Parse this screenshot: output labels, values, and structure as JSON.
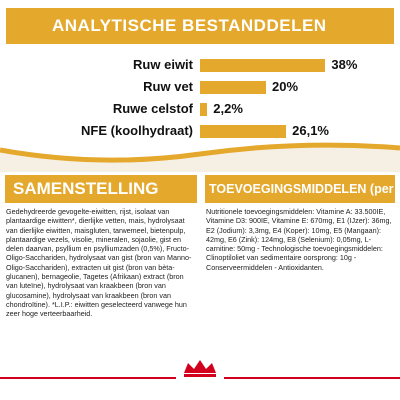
{
  "header": {
    "title": "ANALYTISCHE BESTANDDELEN"
  },
  "analysis": {
    "rows": [
      {
        "label": "Ruw eiwit",
        "value": 38,
        "value_label": "38%"
      },
      {
        "label": "Ruw vet",
        "value": 20,
        "value_label": "20%"
      },
      {
        "label": "Ruwe celstof",
        "value": 2.2,
        "value_label": "2,2%"
      },
      {
        "label": "NFE (koolhydraat)",
        "value": 26.1,
        "value_label": "26,1%"
      }
    ]
  },
  "composition": {
    "title": "SAMENSTELLING",
    "text": "Gedehydreerde gevogelte-eiwitten, rijst, isolaat van plantaardige eiwitten*, dierlijke vetten, mais, hydrolysaat van dierlijke eiwitten, maisgluten, tarwemeel, bietenpulp, plantaardige vezels, visolie, mineralen, sojaolie, gist en delen daarvan, psyllium en psylliumzaden (0,5%), Fructo-Oligo-Sacchariden, hydrolysaat van gist (bron van Manno-Oligo-Sacchariden), extracten uit gist (bron van bèta-glucanen), bernageolie, Tagetes (Afrikaan) extract (bron van luteïne), hydrolysaat van kraakbeen (bron van glucosamine), hydrolysaat van kraakbeen (bron van chondroïtine). *L.I.P.: eiwitten geselecteerd vanwege hun zeer hoge verteerbaarheid."
  },
  "additives": {
    "title": "TOEVOEGINGSMIDDELEN (per kg)",
    "text": "Nutritionele toevoegingsmiddelen: Vitamine A: 33.500IE, Vitamine D3: 900IE, Vitamine E: 670mg, E1 (IJzer): 36mg, E2 (Jodium): 3,3mg, E4 (Koper): 10mg, E5 (Mangaan): 42mg, E6 (Zink): 124mg, E8 (Selenium): 0,05mg, L-carnitine: 50mg - Technologische toevoegingsmiddelen: Clinoptiloliet van sedimentaire oorsprong: 10g - Conserveermiddelen - Antioxidanten."
  }
}
